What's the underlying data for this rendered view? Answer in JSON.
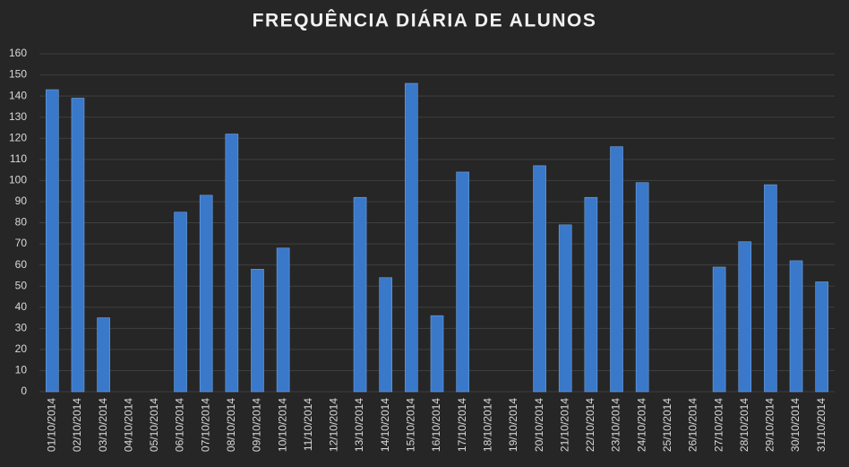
{
  "chart_data": {
    "type": "bar",
    "title": "FREQUÊNCIA DIÁRIA DE ALUNOS",
    "categories": [
      "01/10/2014",
      "02/10/2014",
      "03/10/2014",
      "04/10/2014",
      "05/10/2014",
      "06/10/2014",
      "07/10/2014",
      "08/10/2014",
      "09/10/2014",
      "10/10/2014",
      "11/10/2014",
      "12/10/2014",
      "13/10/2014",
      "14/10/2014",
      "15/10/2014",
      "16/10/2014",
      "17/10/2014",
      "18/10/2014",
      "19/10/2014",
      "20/10/2014",
      "21/10/2014",
      "22/10/2014",
      "23/10/2014",
      "24/10/2014",
      "25/10/2014",
      "26/10/2014",
      "27/10/2014",
      "28/10/2014",
      "29/10/2014",
      "30/10/2014",
      "31/10/2014"
    ],
    "values": [
      143,
      139,
      35,
      0,
      0,
      85,
      93,
      122,
      58,
      68,
      0,
      0,
      92,
      54,
      146,
      36,
      104,
      0,
      0,
      107,
      79,
      92,
      116,
      99,
      0,
      0,
      59,
      71,
      98,
      62,
      52
    ],
    "color": "#3a78c9",
    "ylim": [
      0,
      160
    ],
    "yticks": [
      0,
      10,
      20,
      30,
      40,
      50,
      60,
      70,
      80,
      90,
      100,
      110,
      120,
      130,
      140,
      150,
      160
    ],
    "grid": true
  }
}
